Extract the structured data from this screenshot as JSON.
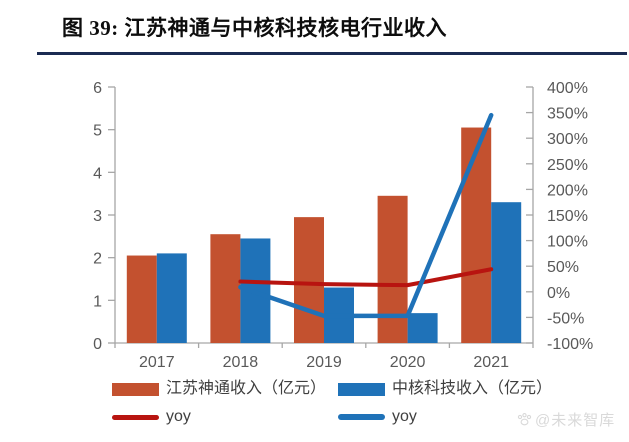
{
  "title": {
    "text": "图 39: 江苏神通与中核科技核电行业收入"
  },
  "watermark": {
    "text": "@未来智库"
  },
  "colors": {
    "accent_underline": "#1b2b52",
    "axis_line": "#a6a6a6",
    "axis_text": "#595959",
    "bar_red": "#c3512f",
    "bar_blue": "#1f72b8",
    "line_red": "#b81410",
    "line_blue": "#1f72b8",
    "legend_text": "#3f3f3f",
    "watermark": "#d9d9d9"
  },
  "chart_data": {
    "type": "bar",
    "subtype": "combo-bar-line-dual-axis",
    "title": "江苏神通与中核科技核电行业收入",
    "categories": [
      "2017",
      "2018",
      "2019",
      "2020",
      "2021"
    ],
    "series": [
      {
        "name": "江苏神通收入（亿元）",
        "kind": "bar",
        "axis": "left",
        "color": "#c3512f",
        "width": 4,
        "values": [
          2.05,
          2.55,
          2.95,
          3.45,
          5.05
        ]
      },
      {
        "name": "中核科技收入（亿元）",
        "kind": "bar",
        "axis": "left",
        "color": "#1f72b8",
        "width": 4,
        "values": [
          2.1,
          2.45,
          1.3,
          0.7,
          3.3
        ]
      },
      {
        "name": "yoy",
        "kind": "line",
        "axis": "right",
        "color": "#b81410",
        "width": 4,
        "values": [
          null,
          20,
          15,
          13,
          44
        ]
      },
      {
        "name": "yoy",
        "kind": "line",
        "axis": "right",
        "color": "#1f72b8",
        "width": 4.5,
        "values": [
          null,
          9,
          -47,
          -47,
          345
        ]
      }
    ],
    "left_axis": {
      "min": 0,
      "max": 6,
      "step": 1,
      "tick_labels": [
        "0",
        "1",
        "2",
        "3",
        "4",
        "5",
        "6"
      ]
    },
    "right_axis": {
      "min": -100,
      "max": 400,
      "step": 50,
      "unit": "%",
      "tick_labels": [
        "-100%",
        "-50%",
        "0%",
        "50%",
        "100%",
        "150%",
        "200%",
        "250%",
        "300%",
        "350%",
        "400%"
      ]
    },
    "grid": false,
    "legend_position": "bottom"
  }
}
